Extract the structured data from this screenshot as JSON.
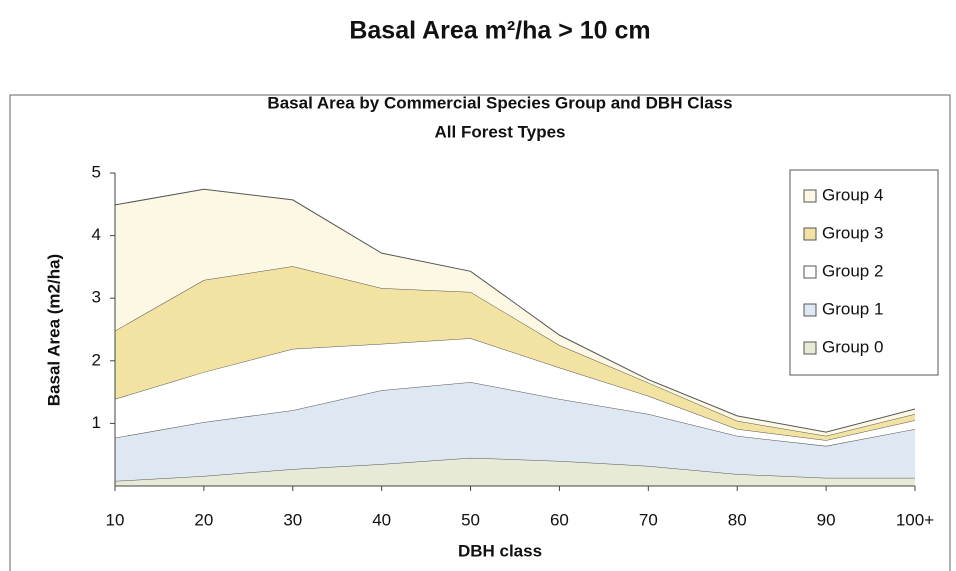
{
  "page_title": "Basal Area m²/ha > 10 cm",
  "chart_data": {
    "type": "stacked-area",
    "title": "Basal Area by Commercial Species Group and DBH Class",
    "subtitle": "All Forest Types",
    "x_label": "DBH class",
    "y_label": "Basal Area (m2/ha)",
    "categories": [
      "10",
      "20",
      "30",
      "40",
      "50",
      "60",
      "70",
      "80",
      "90",
      "100+"
    ],
    "series": [
      {
        "name": "Group 0",
        "color": "#e6ead6",
        "values": [
          0.08,
          0.16,
          0.27,
          0.35,
          0.45,
          0.4,
          0.32,
          0.19,
          0.13,
          0.13
        ]
      },
      {
        "name": "Group 1",
        "color": "#dde8f3",
        "values": [
          0.69,
          0.86,
          0.94,
          1.18,
          1.21,
          0.99,
          0.83,
          0.61,
          0.51,
          0.78
        ]
      },
      {
        "name": "Group 2",
        "color": "#ffffff",
        "values": [
          0.62,
          0.8,
          0.98,
          0.74,
          0.7,
          0.5,
          0.29,
          0.11,
          0.09,
          0.14
        ]
      },
      {
        "name": "Group 3",
        "color": "#f2e3a2",
        "values": [
          1.09,
          1.47,
          1.32,
          0.89,
          0.74,
          0.36,
          0.21,
          0.13,
          0.07,
          0.1
        ]
      },
      {
        "name": "Group 4",
        "color": "#fcf8e3",
        "values": [
          2.01,
          1.45,
          1.06,
          0.56,
          0.33,
          0.16,
          0.05,
          0.08,
          0.06,
          0.08
        ]
      }
    ],
    "ylim": [
      0,
      5
    ],
    "yticks": [
      1,
      2,
      3,
      4,
      5
    ],
    "grid": false,
    "legend": "right"
  }
}
